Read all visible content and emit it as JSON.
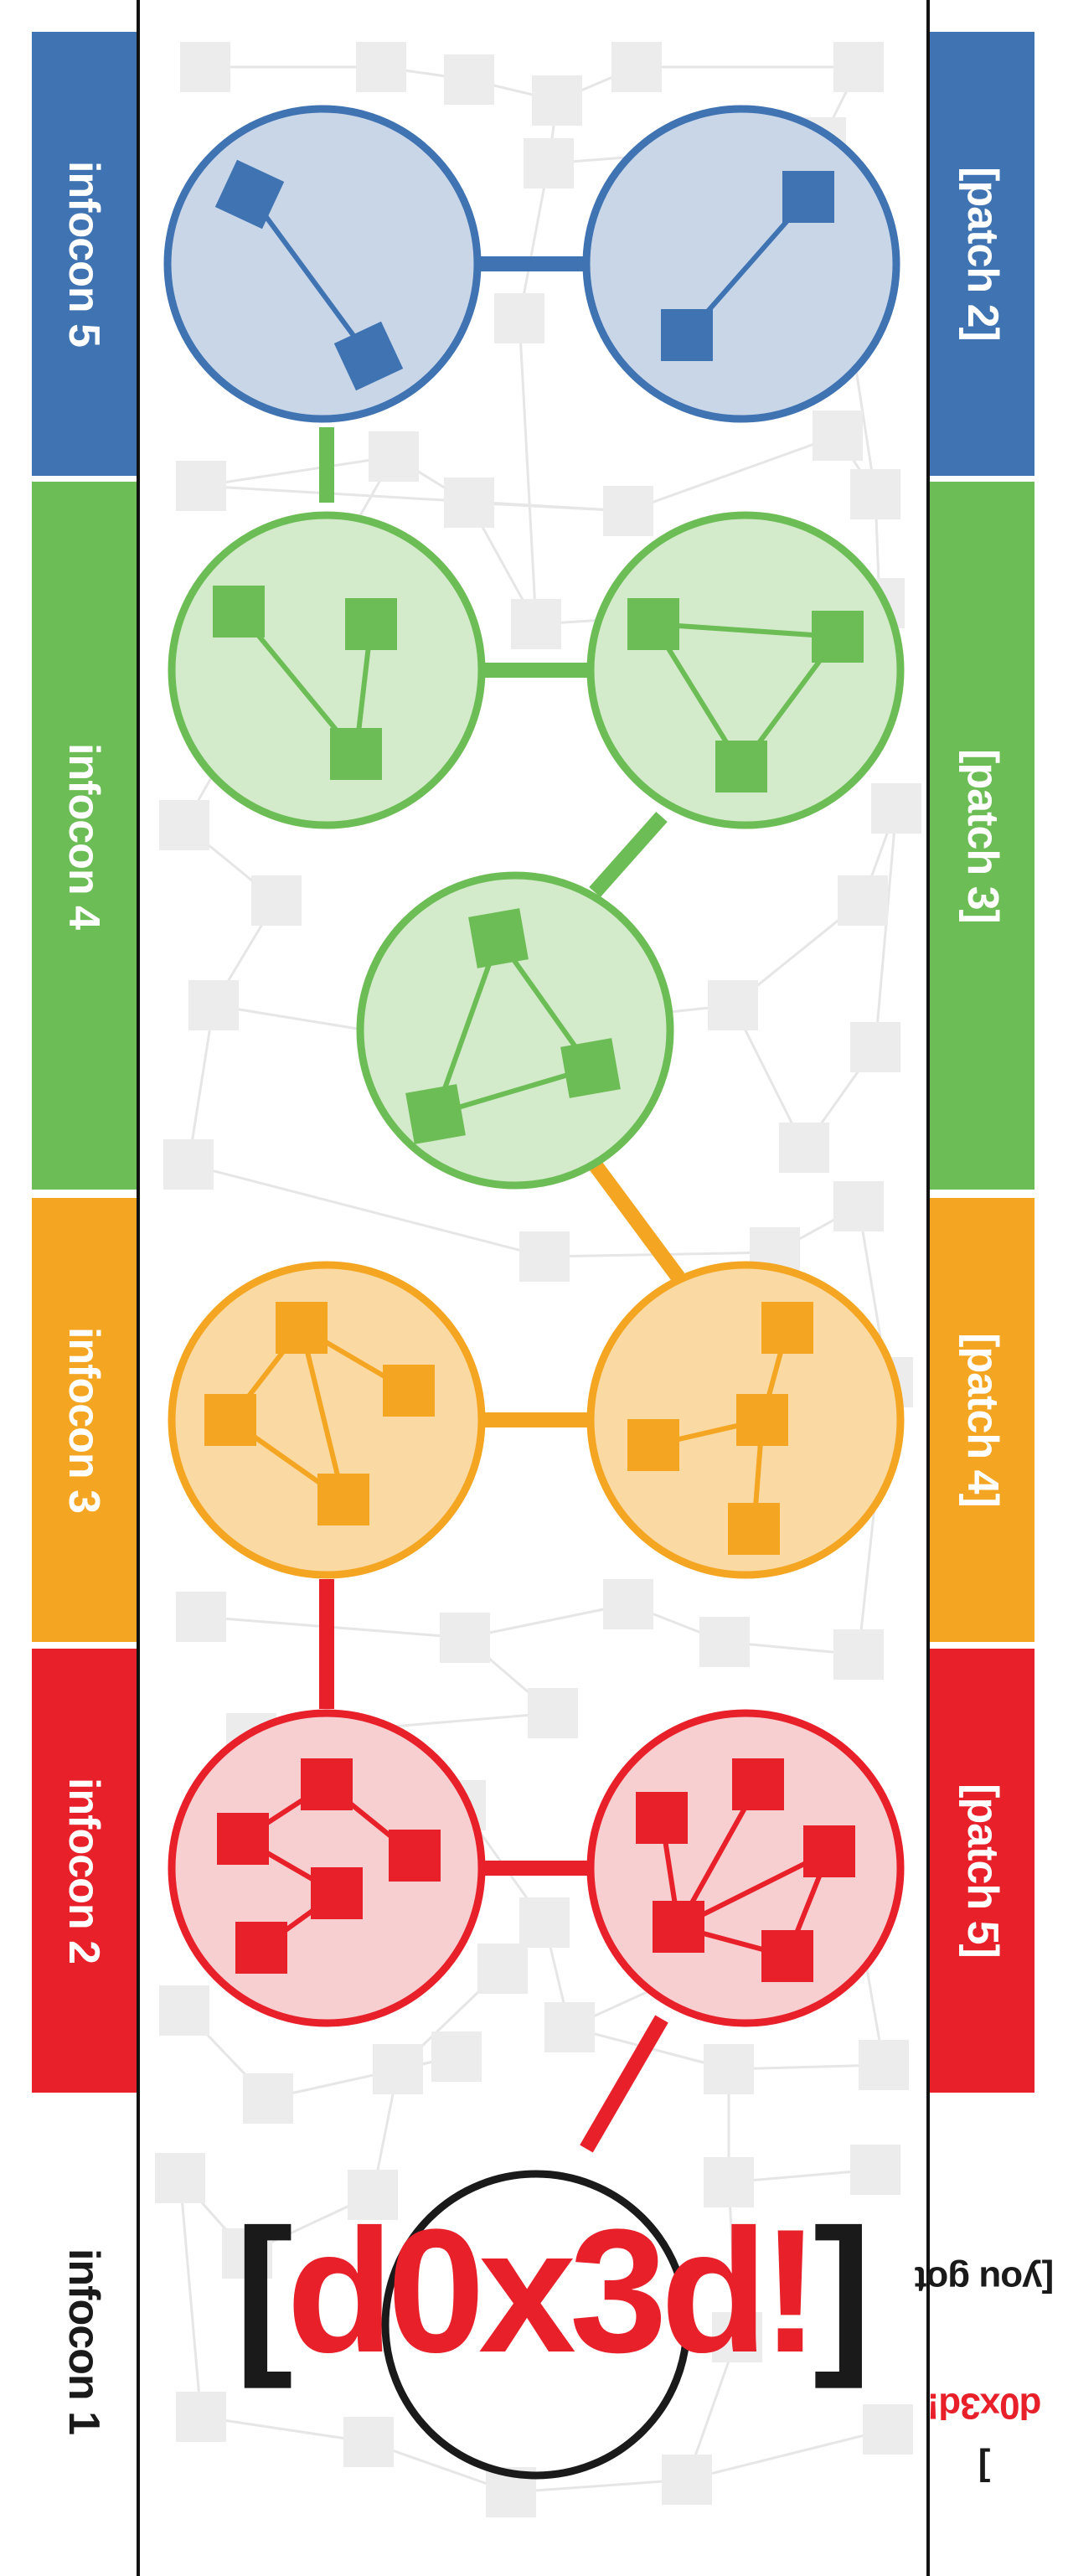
{
  "left_labels": [
    {
      "text": "infocon 5",
      "color": "#3f73b2"
    },
    {
      "text": "infocon 4",
      "color": "#6dbd56"
    },
    {
      "text": "infocon 3",
      "color": "#f4a622"
    },
    {
      "text": "infocon 2",
      "color": "#e8202a"
    },
    {
      "text": "infocon 1",
      "color": "#ffffff"
    }
  ],
  "right_labels": [
    {
      "text": "[patch 2]",
      "color": "#3f73b2"
    },
    {
      "text": "[patch 3]",
      "color": "#6dbd56"
    },
    {
      "text": "[patch 4]",
      "color": "#f4a622"
    },
    {
      "text": "[patch 5]",
      "color": "#e8202a"
    }
  ],
  "footer": {
    "prefix": "[you got ",
    "highlight": "d0x3d!",
    "suffix": "]"
  },
  "logo": {
    "open": "[",
    "text": "d0x3d!",
    "close": "]"
  },
  "colors": {
    "blue": "#3f73b2",
    "blue_fill": "#c8d6e8",
    "green": "#6dbd56",
    "green_fill": "#d3ebcb",
    "orange": "#f4a622",
    "orange_fill": "#fbd9a2",
    "red": "#e8202a",
    "red_fill": "#f7cfd0",
    "background_node": "#ececec",
    "background_edge": "#e6e6e6",
    "divider": "#111111"
  }
}
